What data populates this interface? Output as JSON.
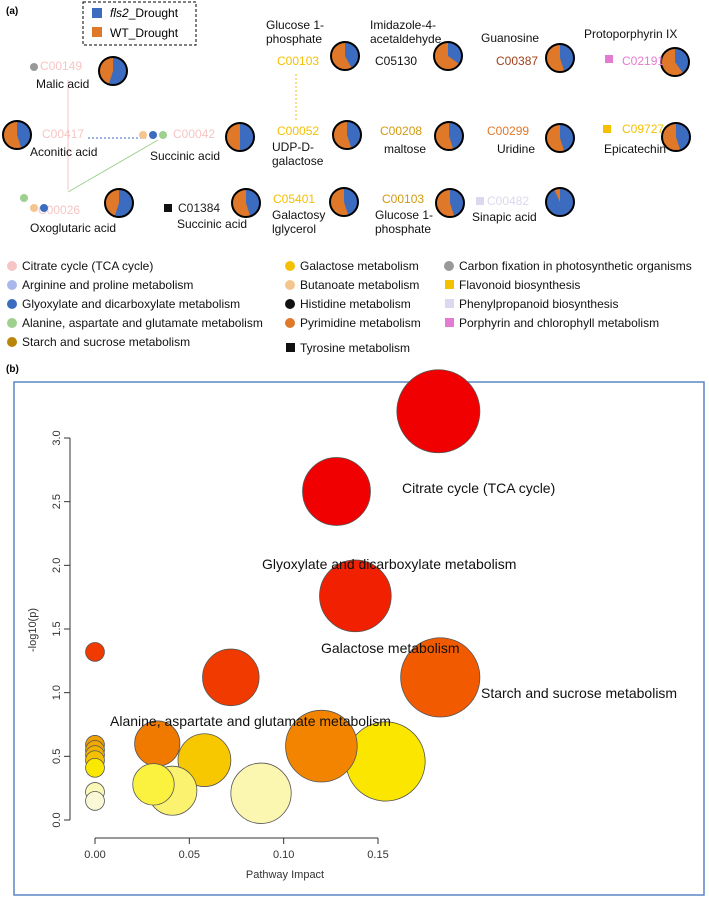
{
  "panel_a": {
    "label": "(a)",
    "legend_top": [
      {
        "text": "fls2_Drought",
        "italic_part": "fls2",
        "suffix": "_Drought",
        "color": "#3b6cbf"
      },
      {
        "text": "WT_Drought",
        "color": "#e0782a"
      }
    ],
    "compounds": [
      {
        "id": "C00149",
        "name": "Malic acid",
        "id_color": "#f7c5c5",
        "fls2_fraction": 0.55,
        "markers": [
          {
            "shape": "circle",
            "color": "#999999"
          }
        ]
      },
      {
        "id": "C00417",
        "name": "Aconitic acid",
        "id_color": "#f7c5c5",
        "fls2_fraction": 0.45,
        "markers": []
      },
      {
        "id": "C00042",
        "name": "Succinic acid",
        "id_color": "#f7c5c5",
        "fls2_fraction": 0.5,
        "markers": [
          {
            "shape": "circle",
            "color": "#f5c58f"
          },
          {
            "shape": "circle",
            "color": "#3b6cbf"
          },
          {
            "shape": "circle",
            "color": "#9ed08f"
          }
        ]
      },
      {
        "id": "C00026",
        "name": "Oxoglutaric acid",
        "id_color": "#f7c5c5",
        "fls2_fraction": 0.55,
        "markers": [
          {
            "shape": "circle",
            "color": "#9ed08f"
          },
          {
            "shape": "circle",
            "color": "#f5c58f"
          },
          {
            "shape": "circle",
            "color": "#3b6cbf"
          }
        ]
      },
      {
        "id": "C01384",
        "name": "Succinic acid",
        "id_color": "#222222",
        "fls2_fraction": 0.45,
        "markers": [
          {
            "shape": "square",
            "color": "#111111"
          }
        ]
      },
      {
        "id": "C00103",
        "name": "Glucose 1-\nphosphate",
        "id_color": "#f5c000",
        "fls2_fraction": 0.42,
        "markers": []
      },
      {
        "id": "C00052",
        "name": "UDP-D-\ngalactose",
        "id_color": "#f5c000",
        "fls2_fraction": 0.45,
        "markers": []
      },
      {
        "id": "C05401",
        "name": "Galactosy\nlglycerol",
        "id_color": "#f5c000",
        "fls2_fraction": 0.45,
        "markers": []
      },
      {
        "id": "C05130",
        "name": "Imidazole-4-\nacetaldehyde",
        "id_color": "#111111",
        "fls2_fraction": 0.35,
        "markers": []
      },
      {
        "id": "C00208",
        "name": "maltose",
        "id_color": "#d29a10",
        "fls2_fraction": 0.45,
        "markers": []
      },
      {
        "id": "C00103",
        "name": "Glucose 1-\nphosphate",
        "id_color": "#d29a10",
        "fls2_fraction": 0.45,
        "markers": []
      },
      {
        "id": "C00387",
        "name": "Guanosine",
        "id_color": "#a0401a",
        "fls2_fraction": 0.45,
        "markers": []
      },
      {
        "id": "C00299",
        "name": "Uridine",
        "id_color": "#e0782a",
        "fls2_fraction": 0.45,
        "markers": []
      },
      {
        "id": "C00482",
        "name": "Sinapic acid",
        "id_color": "#dcd8ef",
        "fls2_fraction": 0.93,
        "markers": [
          {
            "shape": "square",
            "color": "#dcd8ef"
          }
        ]
      },
      {
        "id": "C02191",
        "name": "Protoporphyrin IX",
        "id_color": "#e57ad2",
        "fls2_fraction": 0.4,
        "markers": [
          {
            "shape": "square",
            "color": "#e57ad2"
          }
        ]
      },
      {
        "id": "C09727",
        "name": "Epicatechin",
        "id_color": "#f5c000",
        "fls2_fraction": 0.45,
        "markers": [
          {
            "shape": "square",
            "color": "#f5c000"
          }
        ]
      }
    ],
    "pathway_legend": [
      {
        "label": "Citrate cycle (TCA cycle)",
        "shape": "circle",
        "color": "#f7c5c5"
      },
      {
        "label": "Arginine and proline metabolism",
        "shape": "circle",
        "color": "#a9b8ea"
      },
      {
        "label": "Glyoxylate and dicarboxylate metabolism",
        "shape": "circle",
        "color": "#3b6cbf"
      },
      {
        "label": "Alanine, aspartate and glutamate metabolism",
        "shape": "circle",
        "color": "#9ed08f"
      },
      {
        "label": "Starch and sucrose metabolism",
        "shape": "circle",
        "color": "#b8860b"
      },
      {
        "label": "Galactose metabolism",
        "shape": "circle",
        "color": "#f5c000"
      },
      {
        "label": "Butanoate metabolism",
        "shape": "circle",
        "color": "#f5c58f"
      },
      {
        "label": "Histidine metabolism",
        "shape": "circle",
        "color": "#111111"
      },
      {
        "label": "Pyrimidine metabolism",
        "shape": "circle",
        "color": "#e0782a"
      },
      {
        "label": "Tyrosine metabolism",
        "shape": "square",
        "color": "#111111"
      },
      {
        "label": "Carbon fixation in photosynthetic organisms",
        "shape": "circle",
        "color": "#999999"
      },
      {
        "label": "Flavonoid biosynthesis",
        "shape": "square",
        "color": "#f5c000"
      },
      {
        "label": "Phenylpropanoid biosynthesis",
        "shape": "square",
        "color": "#dcd8ef"
      },
      {
        "label": "Porphyrin and chlorophyll metabolism",
        "shape": "square",
        "color": "#e57ad2"
      }
    ]
  },
  "panel_b": {
    "label": "(b)",
    "frame_color": "#5b86c5"
  },
  "chart_data": {
    "type": "scatter",
    "title": "",
    "xlabel": "Pathway Impact",
    "ylabel": "-log10(p)",
    "xlim": [
      0.0,
      0.19
    ],
    "ylim": [
      0.0,
      3.3
    ],
    "xticks": [
      "0.00",
      "0.05",
      "0.10",
      "0.15"
    ],
    "yticks": [
      "0.0",
      "0.5",
      "1.0",
      "1.5",
      "2.0",
      "2.5",
      "3.0"
    ],
    "points": [
      {
        "x": 0.182,
        "y": 3.21,
        "r": 0.022,
        "color": "#f00000",
        "label": "Citrate cycle (TCA cycle)"
      },
      {
        "x": 0.128,
        "y": 2.58,
        "r": 0.018,
        "color": "#f00000",
        "label": "Glyoxylate and dicarboxylate metabolism"
      },
      {
        "x": 0.138,
        "y": 1.76,
        "r": 0.019,
        "color": "#f02000",
        "label": "Galactose metabolism"
      },
      {
        "x": 0.183,
        "y": 1.12,
        "r": 0.021,
        "color": "#f25a00",
        "label": "Starch and sucrose metabolism"
      },
      {
        "x": 0.072,
        "y": 1.12,
        "r": 0.015,
        "color": "#f03a00",
        "label": "Alanine, aspartate and glutamate metabolism"
      },
      {
        "x": 0.0,
        "y": 1.32,
        "r": 0.005,
        "color": "#f03a00",
        "label": ""
      },
      {
        "x": 0.033,
        "y": 0.6,
        "r": 0.012,
        "color": "#f07a00",
        "label": ""
      },
      {
        "x": 0.12,
        "y": 0.58,
        "r": 0.019,
        "color": "#f28400",
        "label": ""
      },
      {
        "x": 0.058,
        "y": 0.47,
        "r": 0.014,
        "color": "#f7c800",
        "label": ""
      },
      {
        "x": 0.154,
        "y": 0.46,
        "r": 0.021,
        "color": "#fbe600",
        "label": ""
      },
      {
        "x": 0.031,
        "y": 0.28,
        "r": 0.011,
        "color": "#fbf240",
        "label": ""
      },
      {
        "x": 0.041,
        "y": 0.23,
        "r": 0.013,
        "color": "#fbf270",
        "label": ""
      },
      {
        "x": 0.088,
        "y": 0.21,
        "r": 0.016,
        "color": "#fbf6b0",
        "label": ""
      },
      {
        "x": 0.0,
        "y": 0.59,
        "r": 0.005,
        "color": "#f0a000",
        "label": ""
      },
      {
        "x": 0.0,
        "y": 0.55,
        "r": 0.005,
        "color": "#f0a800",
        "label": ""
      },
      {
        "x": 0.0,
        "y": 0.51,
        "r": 0.005,
        "color": "#f0b400",
        "label": ""
      },
      {
        "x": 0.0,
        "y": 0.47,
        "r": 0.005,
        "color": "#f5c000",
        "label": ""
      },
      {
        "x": 0.0,
        "y": 0.41,
        "r": 0.005,
        "color": "#fbe800",
        "label": ""
      },
      {
        "x": 0.0,
        "y": 0.22,
        "r": 0.005,
        "color": "#fbf8b8",
        "label": ""
      },
      {
        "x": 0.0,
        "y": 0.15,
        "r": 0.005,
        "color": "#fbf8d8",
        "label": ""
      }
    ]
  }
}
